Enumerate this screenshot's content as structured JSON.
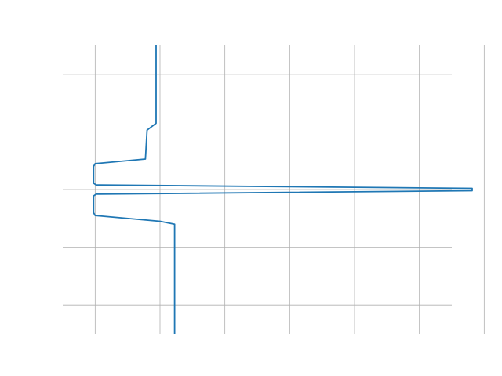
{
  "chart_data": {
    "type": "line",
    "title": "",
    "xlabel": "",
    "ylabel": "",
    "grid": true,
    "axis_labels_visible": false,
    "xlim": [
      -0.1,
      1.1
    ],
    "ylim": [
      -2.5,
      2.5
    ],
    "x_gridlines": [
      0.0,
      0.2,
      0.4,
      0.6,
      0.8,
      1.0,
      1.2
    ],
    "y_gridlines": [
      -2.0,
      -1.0,
      0.0,
      1.0,
      2.0
    ],
    "series": [
      {
        "color": "#1f77b4",
        "points": [
          {
            "x": 0.188,
            "y": 2.5
          },
          {
            "x": 0.188,
            "y": 1.15
          },
          {
            "x": 0.16,
            "y": 1.03
          },
          {
            "x": 0.155,
            "y": 0.53
          },
          {
            "x": 0.0,
            "y": 0.45
          },
          {
            "x": -0.005,
            "y": 0.4
          },
          {
            "x": -0.005,
            "y": 0.11
          },
          {
            "x": 0.003,
            "y": 0.08
          },
          {
            "x": 1.163,
            "y": 0.02
          },
          {
            "x": 1.163,
            "y": -0.02
          },
          {
            "x": 0.003,
            "y": -0.08
          },
          {
            "x": -0.005,
            "y": -0.11
          },
          {
            "x": -0.005,
            "y": -0.4
          },
          {
            "x": 0.0,
            "y": -0.45
          },
          {
            "x": 0.2,
            "y": -0.55
          },
          {
            "x": 0.245,
            "y": -0.6
          },
          {
            "x": 0.245,
            "y": -2.5
          }
        ]
      }
    ]
  }
}
